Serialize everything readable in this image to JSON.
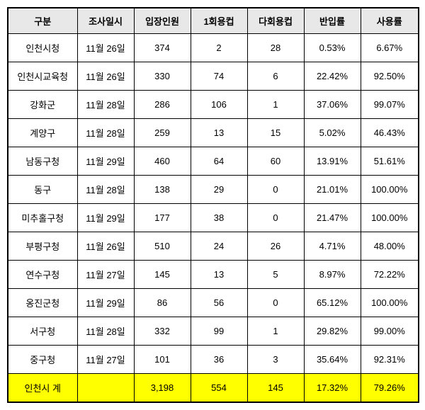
{
  "columns": [
    "구분",
    "조사일시",
    "입장인원",
    "1회용컵",
    "다회용컵",
    "반입률",
    "사용률"
  ],
  "rows": [
    [
      "인천시청",
      "11월 26일",
      "374",
      "2",
      "28",
      "0.53%",
      "6.67%"
    ],
    [
      "인천시교육청",
      "11월 26일",
      "330",
      "74",
      "6",
      "22.42%",
      "92.50%"
    ],
    [
      "강화군",
      "11월 28일",
      "286",
      "106",
      "1",
      "37.06%",
      "99.07%"
    ],
    [
      "계양구",
      "11월 28일",
      "259",
      "13",
      "15",
      "5.02%",
      "46.43%"
    ],
    [
      "남동구청",
      "11월 29일",
      "460",
      "64",
      "60",
      "13.91%",
      "51.61%"
    ],
    [
      "동구",
      "11월 28일",
      "138",
      "29",
      "0",
      "21.01%",
      "100.00%"
    ],
    [
      "미추홀구청",
      "11월 29일",
      "177",
      "38",
      "0",
      "21.47%",
      "100.00%"
    ],
    [
      "부평구청",
      "11월 26일",
      "510",
      "24",
      "26",
      "4.71%",
      "48.00%"
    ],
    [
      "연수구청",
      "11월 27일",
      "145",
      "13",
      "5",
      "8.97%",
      "72.22%"
    ],
    [
      "옹진군청",
      "11월 29일",
      "86",
      "56",
      "0",
      "65.12%",
      "100.00%"
    ],
    [
      "서구청",
      "11월 28일",
      "332",
      "99",
      "1",
      "29.82%",
      "99.00%"
    ],
    [
      "중구청",
      "11월 27일",
      "101",
      "36",
      "3",
      "35.64%",
      "92.31%"
    ]
  ],
  "total": [
    "인천시 계",
    "",
    "3,198",
    "554",
    "145",
    "17.32%",
    "79.26%"
  ],
  "style": {
    "header_bg": "#e8e8e8",
    "total_bg": "#ffff00",
    "border_color": "#000000",
    "font_size": 13
  }
}
